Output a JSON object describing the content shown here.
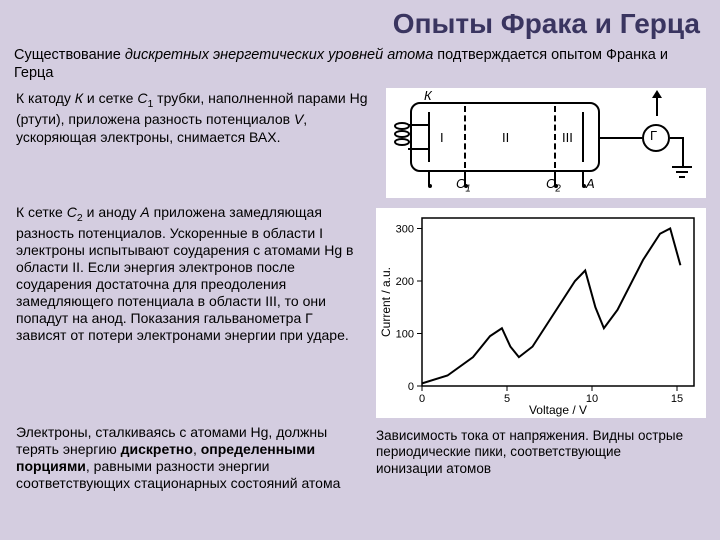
{
  "title": "Опыты Фрака и Герца",
  "intro_part1": "Существование ",
  "intro_italic": "дискретных энергетических уровней атома",
  "intro_part2": " подтверждается опытом Франка и Герца",
  "para1_a": "К катоду ",
  "para1_K": "К",
  "para1_b": " и сетке ",
  "para1_C1": "C",
  "para1_C1sub": "1",
  "para1_c": " трубки, наполненной парами Hg (ртути), приложена разность потенциалов ",
  "para1_V": "V",
  "para1_d": ", ускоряющая электроны, снимается ВАХ.",
  "para2_a": "К сетке ",
  "para2_C2": "C",
  "para2_C2sub": "2",
  "para2_b": " и аноду ",
  "para2_A": "A",
  "para2_c": " приложена замедляющая разность потенциалов. Ускоренные в области I электроны испытывают соударения с атомами Hg в области II. Если энергия электронов после соударения достаточна для преодоления замедляющего потенциала в области III, то они попадут на анод. Показания гальванометра Г зависят от потери электронами энергии при ударе.",
  "para3_a": "Электроны, сталкиваясь с атомами Hg, должны терять энергию ",
  "para3_b1": "дискретно",
  "para3_b": ", ",
  "para3_b2": "определенными порциями",
  "para3_c": ", равными разности энергии соответствующих стационарных состояний атома",
  "caption_a": "Зависимость тока от напряжения. Видны острые периодические пики, соответствующие ионизации атомов",
  "circuit": {
    "K": "К",
    "C1": "C",
    "C1s": "1",
    "C2": "C",
    "C2s": "2",
    "A": "A",
    "G": "Г",
    "r1": "I",
    "r2": "II",
    "r3": "III"
  },
  "chart": {
    "xlabel": "Voltage / V",
    "ylabel": "Current / a.u.",
    "xticks": [
      "0",
      "5",
      "10",
      "15"
    ],
    "yticks": [
      "0",
      "100",
      "200",
      "300"
    ],
    "curve_color": "#000000",
    "bg": "#ffffff",
    "points": [
      [
        0,
        5
      ],
      [
        1.5,
        20
      ],
      [
        3,
        55
      ],
      [
        4,
        95
      ],
      [
        4.7,
        110
      ],
      [
        5.2,
        75
      ],
      [
        5.7,
        55
      ],
      [
        6.5,
        75
      ],
      [
        8,
        150
      ],
      [
        9,
        200
      ],
      [
        9.6,
        220
      ],
      [
        10.2,
        150
      ],
      [
        10.7,
        110
      ],
      [
        11.5,
        145
      ],
      [
        13,
        240
      ],
      [
        14,
        290
      ],
      [
        14.6,
        300
      ],
      [
        15.2,
        230
      ]
    ],
    "xlim": [
      0,
      16
    ],
    "ylim": [
      0,
      320
    ]
  }
}
